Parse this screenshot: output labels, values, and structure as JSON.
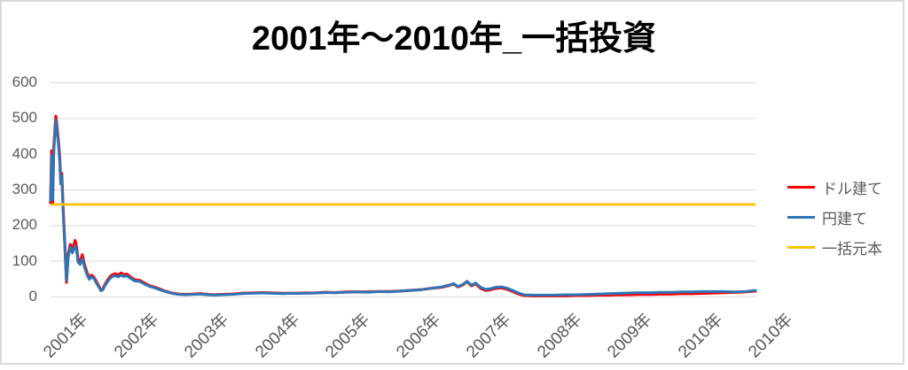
{
  "chart": {
    "title": "2001年～2010年_一括投資"
  },
  "colors": {
    "background": "#FFFFFF",
    "border": "#D9D9D9",
    "grid": "#D9D9D9",
    "axis_line": "#D9D9D9",
    "axis_text": "#595959",
    "legend_text": "#595959",
    "title_text": "#000000",
    "series_usd": "#FF0000",
    "series_jpy": "#2E75B6",
    "series_principal": "#FFC000"
  },
  "chart_data": {
    "type": "line",
    "title": "2001年～2010年_一括投資",
    "xlabel": "",
    "ylabel": "",
    "ylim": [
      0,
      600
    ],
    "grid": true,
    "legend_position": "right",
    "ytick_labels": [
      "0",
      "100",
      "200",
      "300",
      "400",
      "500",
      "600"
    ],
    "ytick_values": [
      0,
      100,
      200,
      300,
      400,
      500,
      600
    ],
    "xtick_labels": [
      "2001年",
      "2002年",
      "2003年",
      "2004年",
      "2005年",
      "2006年",
      "2007年",
      "2008年",
      "2009年",
      "2010年",
      "2010年"
    ],
    "x_note": "x = fraction of horizontal axis span (start 2001 to end 2010), dense daily data downsampled",
    "x": [
      0,
      0.0015,
      0.003,
      0.0045,
      0.006,
      0.0075,
      0.009,
      0.011,
      0.013,
      0.0145,
      0.016,
      0.018,
      0.02,
      0.0226,
      0.025,
      0.028,
      0.031,
      0.035,
      0.037,
      0.039,
      0.042,
      0.045,
      0.048,
      0.052,
      0.055,
      0.058,
      0.0615,
      0.065,
      0.068,
      0.0715,
      0.074,
      0.077,
      0.081,
      0.085,
      0.089,
      0.092,
      0.096,
      0.1,
      0.104,
      0.108,
      0.114,
      0.119,
      0.127,
      0.134,
      0.141,
      0.148,
      0.155,
      0.161,
      0.168,
      0.174,
      0.182,
      0.192,
      0.202,
      0.212,
      0.222,
      0.232,
      0.245,
      0.258,
      0.272,
      0.286,
      0.3,
      0.315,
      0.33,
      0.345,
      0.36,
      0.375,
      0.39,
      0.405,
      0.42,
      0.435,
      0.45,
      0.465,
      0.48,
      0.495,
      0.51,
      0.525,
      0.54,
      0.555,
      0.565,
      0.572,
      0.578,
      0.585,
      0.591,
      0.597,
      0.603,
      0.61,
      0.617,
      0.624,
      0.632,
      0.64,
      0.648,
      0.656,
      0.664,
      0.672,
      0.685,
      0.7,
      0.715,
      0.73,
      0.745,
      0.76,
      0.775,
      0.79,
      0.805,
      0.82,
      0.835,
      0.85,
      0.865,
      0.88,
      0.895,
      0.91,
      0.925,
      0.94,
      0.955,
      0.97,
      0.985,
      1.0
    ],
    "series": [
      {
        "key": "usd",
        "name": "ドル建て",
        "color": "#FF0000",
        "values": [
          262,
          408,
          263,
          415,
          462,
          505,
          478,
          440,
          392,
          322,
          345,
          242,
          160,
          40,
          118,
          146,
          130,
          157,
          138,
          104,
          98,
          117,
          90,
          66,
          52,
          60,
          54,
          42,
          31,
          18,
          20,
          33,
          46,
          57,
          62,
          64,
          60,
          66,
          61,
          63,
          54,
          47,
          45,
          37,
          30,
          26,
          21,
          16,
          12,
          9,
          7,
          6,
          7,
          8,
          6,
          5,
          6,
          7,
          9,
          10,
          11,
          10,
          9,
          9,
          10,
          10,
          12,
          11,
          13,
          13,
          13,
          14,
          14,
          15,
          17,
          19,
          23,
          26,
          31,
          35,
          27,
          33,
          42,
          30,
          36,
          23,
          17,
          19,
          23,
          24,
          20,
          14,
          7,
          3,
          2,
          2,
          2,
          2,
          3,
          3,
          4,
          4,
          5,
          5,
          6,
          6,
          7,
          7,
          8,
          8,
          9,
          10,
          11,
          12,
          13,
          15
        ]
      },
      {
        "key": "jpy",
        "name": "円建て",
        "color": "#2E75B6",
        "values": [
          268,
          395,
          272,
          400,
          452,
          495,
          468,
          430,
          380,
          315,
          338,
          235,
          155,
          45,
          110,
          138,
          122,
          143,
          128,
          96,
          90,
          106,
          82,
          60,
          48,
          55,
          50,
          38,
          28,
          16,
          18,
          30,
          42,
          52,
          57,
          58,
          55,
          60,
          56,
          58,
          50,
          44,
          42,
          34,
          28,
          24,
          19,
          15,
          11,
          8,
          6,
          5,
          6,
          7,
          5,
          4,
          5,
          6,
          8,
          9,
          10,
          9,
          8,
          9,
          9,
          10,
          11,
          11,
          12,
          13,
          12,
          14,
          13,
          15,
          17,
          19,
          23,
          27,
          32,
          36,
          28,
          34,
          43,
          32,
          38,
          26,
          20,
          22,
          26,
          27,
          23,
          17,
          10,
          5,
          4,
          4,
          4,
          5,
          5,
          6,
          7,
          8,
          9,
          10,
          11,
          11,
          12,
          12,
          13,
          13,
          14,
          14,
          14,
          13,
          14,
          17
        ]
      },
      {
        "key": "principal",
        "name": "一括元本",
        "color": "#FFC000",
        "constant_value": 258
      }
    ]
  },
  "legend": {
    "items": [
      {
        "label": "ドル建て",
        "color": "#FF0000"
      },
      {
        "label": "円建て",
        "color": "#2E75B6"
      },
      {
        "label": "一括元本",
        "color": "#FFC000"
      }
    ]
  }
}
